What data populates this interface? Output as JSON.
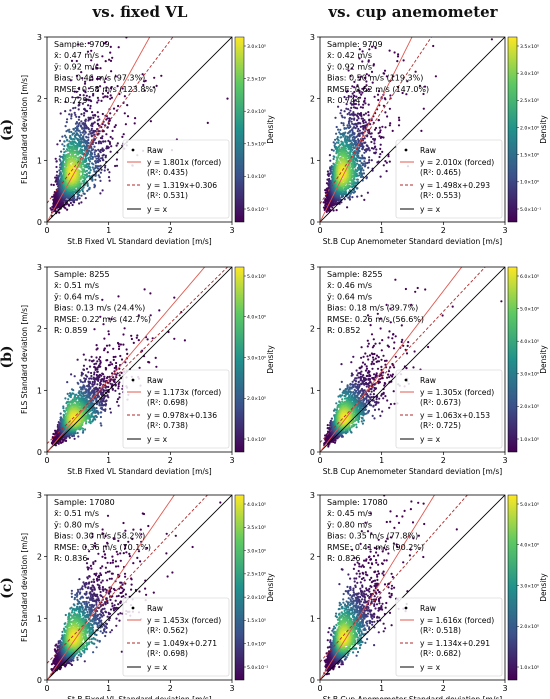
{
  "column_titles": [
    "vs. fixed VL",
    "vs. cup anemometer"
  ],
  "row_labels": [
    "(a)",
    "(b)",
    "(c)"
  ],
  "colorbar_label": "Density",
  "chart_data": [
    {
      "type": "scatter",
      "row": 0,
      "col": 0,
      "xlabel": "St.B Fixed VL Standard deviation [m/s]",
      "ylabel": "FLS Standard deviation [m/s]",
      "xlim": [
        0,
        3
      ],
      "ylim": [
        0,
        3
      ],
      "ticks": [
        0,
        1,
        2,
        3
      ],
      "stats": [
        "Sample: 9709",
        "x̄: 0.47 m/s",
        "ȳ: 0.92 m/s",
        "Bias: 0.46 m/s (97.3%)",
        "RMSE: 0.58 m/s (123.8%)",
        "R: 0.729"
      ],
      "legend": [
        "Raw",
        "y = 1.801x (forced)",
        "(R²: 0.435)",
        "y = 1.319x+0.306",
        "(R²: 0.531)",
        "y = x"
      ],
      "fits": {
        "forced": {
          "slope": 1.801,
          "intercept": 0
        },
        "free": {
          "slope": 1.319,
          "intercept": 0.306
        }
      },
      "cloud": {
        "x_mean": 0.47,
        "y_mean": 0.92,
        "r": 0.729
      },
      "colorbar": {
        "ticks": [
          "3.0×10⁰",
          "2.5×10⁰",
          "2.0×10⁰",
          "1.5×10⁰",
          "1.0×10⁰",
          "5.0×10⁻¹"
        ]
      }
    },
    {
      "type": "scatter",
      "row": 0,
      "col": 1,
      "xlabel": "St.B Cup Anemometer Standard deviation [m/s]",
      "ylabel": "",
      "xlim": [
        0,
        3
      ],
      "ylim": [
        0,
        3
      ],
      "ticks": [
        0,
        1,
        2,
        3
      ],
      "stats": [
        "Sample: 9709",
        "x̄: 0.42 m/s",
        "ȳ: 0.92 m/s",
        "Bias: 0.50 m/s (119.3%)",
        "RMSE: 0.62 m/s (147.0%)",
        "R: 0.744"
      ],
      "legend": [
        "Raw",
        "y = 2.010x (forced)",
        "(R²: 0.465)",
        "y = 1.498x+0.293",
        "(R²: 0.553)",
        "y = x"
      ],
      "fits": {
        "forced": {
          "slope": 2.01,
          "intercept": 0
        },
        "free": {
          "slope": 1.498,
          "intercept": 0.293
        }
      },
      "cloud": {
        "x_mean": 0.42,
        "y_mean": 0.92,
        "r": 0.744
      },
      "colorbar": {
        "ticks": [
          "3.5×10⁰",
          "3.0×10⁰",
          "2.5×10⁰",
          "2.0×10⁰",
          "1.5×10⁰",
          "1.0×10⁰",
          "5.0×10⁻¹"
        ]
      }
    },
    {
      "type": "scatter",
      "row": 1,
      "col": 0,
      "xlabel": "St.B Fixed VL Standard deviation [m/s]",
      "ylabel": "FLS Standard deviation [m/s]",
      "xlim": [
        0,
        3
      ],
      "ylim": [
        0,
        3
      ],
      "ticks": [
        0,
        1,
        2,
        3
      ],
      "stats": [
        "Sample: 8255",
        "x̄: 0.51 m/s",
        "ȳ: 0.64 m/s",
        "Bias: 0.13 m/s (24.4%)",
        "RMSE: 0.22 m/s (42.7%)",
        "R: 0.859"
      ],
      "legend": [
        "Raw",
        "y = 1.173x (forced)",
        "(R²: 0.698)",
        "y = 0.978x+0.136",
        "(R²: 0.738)",
        "y = x"
      ],
      "fits": {
        "forced": {
          "slope": 1.173,
          "intercept": 0
        },
        "free": {
          "slope": 0.978,
          "intercept": 0.136
        }
      },
      "cloud": {
        "x_mean": 0.51,
        "y_mean": 0.64,
        "r": 0.859
      },
      "colorbar": {
        "ticks": [
          "5.0×10⁰",
          "4.0×10⁰",
          "3.0×10⁰",
          "2.0×10⁰",
          "1.0×10⁰"
        ]
      }
    },
    {
      "type": "scatter",
      "row": 1,
      "col": 1,
      "xlabel": "St.B Cup Anemometer Standard deviation [m/s]",
      "ylabel": "",
      "xlim": [
        0,
        3
      ],
      "ylim": [
        0,
        3
      ],
      "ticks": [
        0,
        1,
        2,
        3
      ],
      "stats": [
        "Sample: 8255",
        "x̄: 0.46 m/s",
        "ȳ: 0.64 m/s",
        "Bias: 0.18 m/s (39.7%)",
        "RMSE: 0.26 m/s (56.6%)",
        "R: 0.852"
      ],
      "legend": [
        "Raw",
        "y = 1.305x (forced)",
        "(R²: 0.673)",
        "y = 1.063x+0.153",
        "(R²: 0.725)",
        "y = x"
      ],
      "fits": {
        "forced": {
          "slope": 1.305,
          "intercept": 0
        },
        "free": {
          "slope": 1.063,
          "intercept": 0.153
        }
      },
      "cloud": {
        "x_mean": 0.46,
        "y_mean": 0.64,
        "r": 0.852
      },
      "colorbar": {
        "ticks": [
          "6.0×10⁰",
          "5.0×10⁰",
          "4.0×10⁰",
          "3.0×10⁰",
          "2.0×10⁰",
          "1.0×10⁰"
        ]
      }
    },
    {
      "type": "scatter",
      "row": 2,
      "col": 0,
      "xlabel": "St.B Fixed VL Standard deviation [m/s]",
      "ylabel": "FLS Standard deviation [m/s]",
      "xlim": [
        0,
        3
      ],
      "ylim": [
        0,
        3
      ],
      "ticks": [
        0,
        1,
        2,
        3
      ],
      "stats": [
        "Sample: 17080",
        "x̄: 0.51 m/s",
        "ȳ: 0.80 m/s",
        "Bias: 0.30 m/s (58.2%)",
        "RMSE: 0.36 m/s (70.1%)",
        "R: 0.836"
      ],
      "legend": [
        "Raw",
        "y = 1.453x (forced)",
        "(R²: 0.562)",
        "y = 1.049x+0.271",
        "(R²: 0.698)",
        "y = x"
      ],
      "fits": {
        "forced": {
          "slope": 1.453,
          "intercept": 0
        },
        "free": {
          "slope": 1.049,
          "intercept": 0.271
        }
      },
      "cloud": {
        "x_mean": 0.51,
        "y_mean": 0.8,
        "r": 0.836
      },
      "colorbar": {
        "ticks": [
          "4.0×10⁰",
          "3.5×10⁰",
          "3.0×10⁰",
          "2.5×10⁰",
          "2.0×10⁰",
          "1.5×10⁰",
          "1.0×10⁰",
          "5.0×10⁻¹"
        ]
      }
    },
    {
      "type": "scatter",
      "row": 2,
      "col": 1,
      "xlabel": "St.B Cup Anemometer Standard deviation [m/s]",
      "ylabel": "",
      "xlim": [
        0,
        3
      ],
      "ylim": [
        0,
        3
      ],
      "ticks": [
        0,
        1,
        2,
        3
      ],
      "stats": [
        "Sample: 17080",
        "x̄: 0.45 m/s",
        "ȳ: 0.80 m/s",
        "Bias: 0.35 m/s (77.8%)",
        "RMSE: 0.41 m/s (90.2%)",
        "R: 0.826"
      ],
      "legend": [
        "Raw",
        "y = 1.616x (forced)",
        "(R²: 0.518)",
        "y = 1.134x+0.291",
        "(R²: 0.682)",
        "y = x"
      ],
      "fits": {
        "forced": {
          "slope": 1.616,
          "intercept": 0
        },
        "free": {
          "slope": 1.134,
          "intercept": 0.291
        }
      },
      "cloud": {
        "x_mean": 0.45,
        "y_mean": 0.8,
        "r": 0.826
      },
      "colorbar": {
        "ticks": [
          "5.0×10⁰",
          "4.0×10⁰",
          "3.0×10⁰",
          "2.0×10⁰",
          "1.0×10⁰"
        ]
      }
    }
  ],
  "colors": {
    "forced_fit": "#e0584f",
    "free_fit": "#b02a2a",
    "identity": "#000000",
    "colormap": [
      "#440154",
      "#3b528b",
      "#21918c",
      "#5ec962",
      "#fde725"
    ]
  }
}
